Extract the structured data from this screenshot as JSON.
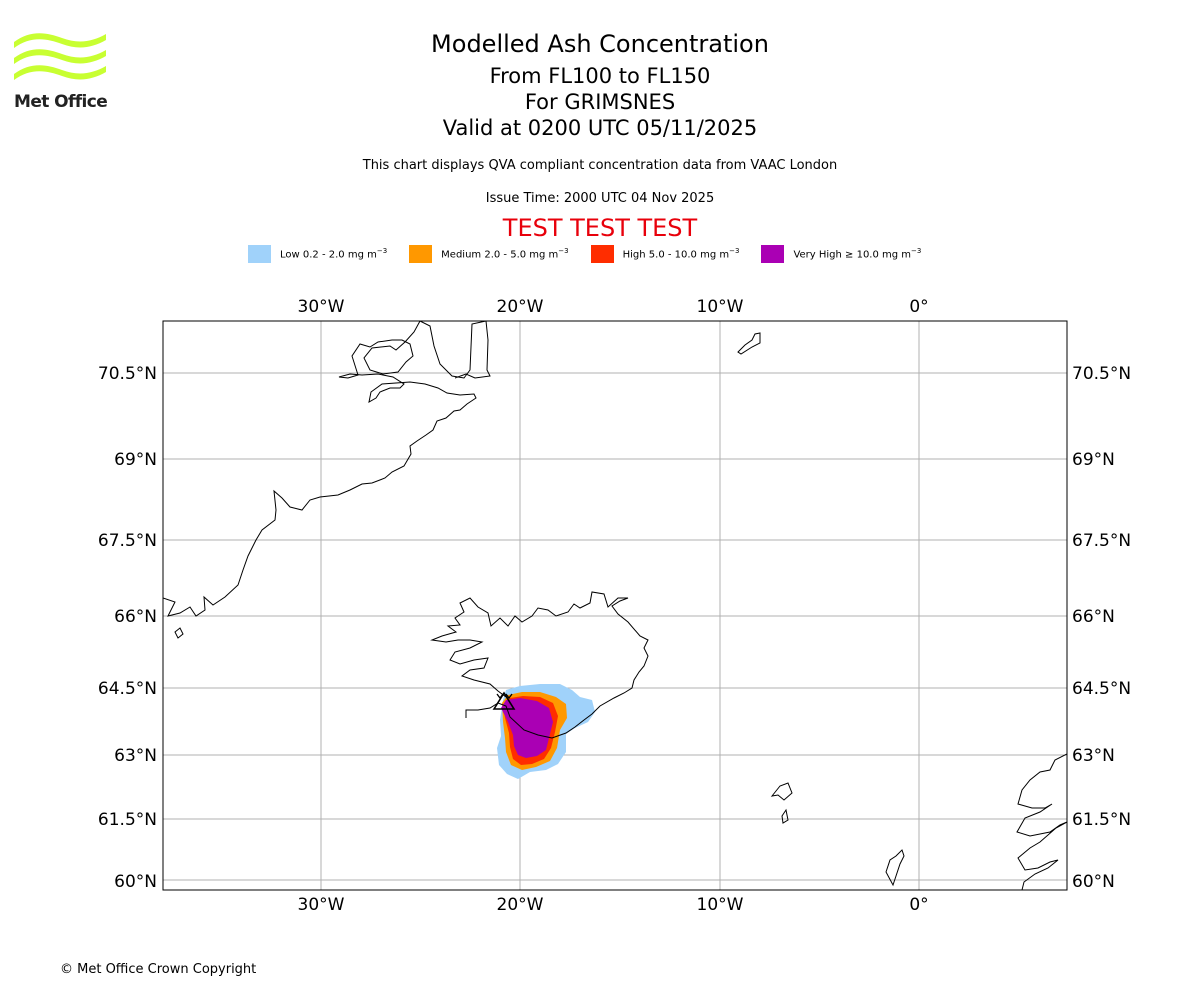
{
  "header": {
    "title": "Modelled Ash Concentration",
    "subtitle_levels": "From FL100 to FL150",
    "subtitle_volcano": "For GRIMSNES",
    "subtitle_valid": "Valid at 0200 UTC 05/11/2025",
    "description": "This chart displays QVA compliant concentration data from VAAC London",
    "issue_time": "Issue Time: 2000 UTC 04 Nov 2025",
    "test_banner": "TEST TEST TEST",
    "test_color": "#e8000b"
  },
  "logo": {
    "icon": "met-office-wave-logo-icon",
    "text": "Met Office",
    "color": "#c8ff32"
  },
  "legend": [
    {
      "label": "Low 0.2 - 2.0 mg m",
      "unit_exp": "−3",
      "color": "#a0d2fa"
    },
    {
      "label": "Medium 2.0 - 5.0 mg m",
      "unit_exp": "−3",
      "color": "#ff9800"
    },
    {
      "label": "High 5.0 - 10.0 mg m",
      "unit_exp": "−3",
      "color": "#ff2d00"
    },
    {
      "label": "Very High  ≥  10.0 mg m",
      "unit_exp": "−3",
      "color": "#aa00b4"
    }
  ],
  "map": {
    "lon_range": [
      -37.8,
      7.4
    ],
    "lat_range": [
      59.8,
      71.4
    ],
    "lon_ticks": [
      "30°W",
      "20°W",
      "10°W",
      "0°"
    ],
    "lat_ticks": [
      "70.5°N",
      "69°N",
      "67.5°N",
      "66°N",
      "64.5°N",
      "63°N",
      "61.5°N",
      "60°N"
    ],
    "volcano_marker": "volcano-triangle-icon"
  },
  "footer": {
    "copyright": "© Met Office Crown Copyright"
  }
}
